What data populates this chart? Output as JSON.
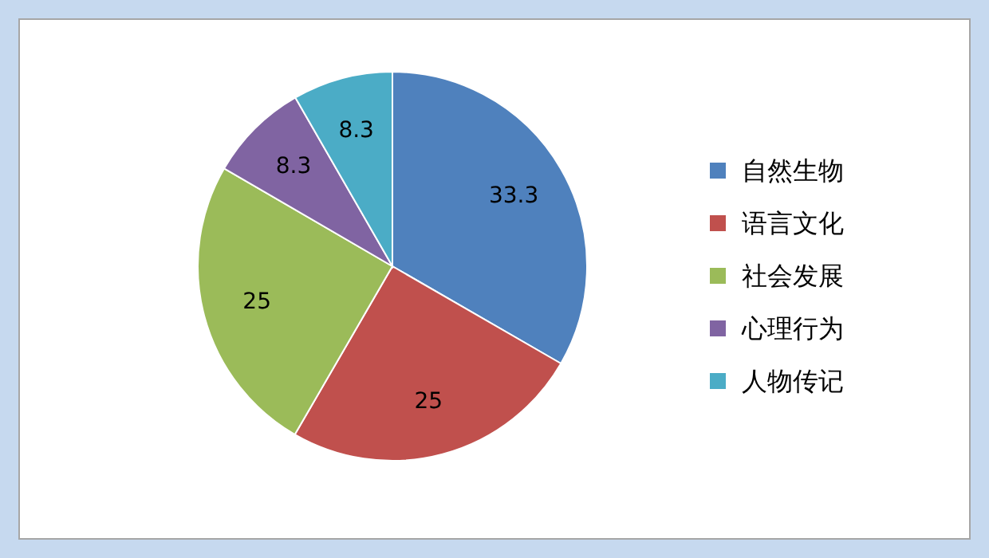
{
  "chart_data": {
    "type": "pie",
    "categories": [
      "自然生物",
      "语言文化",
      "社会发展",
      "心理行为",
      "人物传记"
    ],
    "values": [
      33.3,
      25,
      25,
      8.3,
      8.3
    ],
    "colors": [
      "#4f81bd",
      "#c0504d",
      "#9bbb59",
      "#8064a2",
      "#4bacc6"
    ],
    "data_labels": true,
    "legend": "right"
  }
}
